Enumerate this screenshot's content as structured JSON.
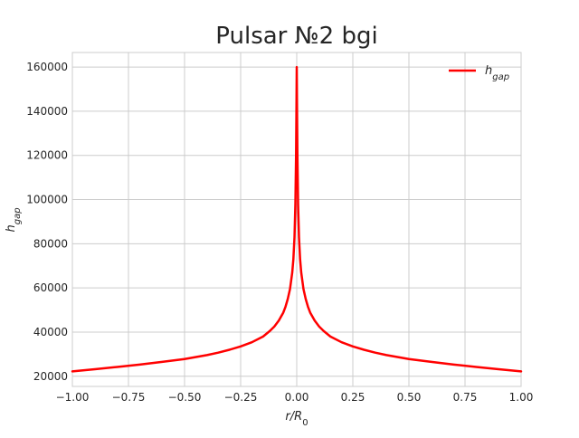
{
  "chart_data": {
    "type": "line",
    "title": "Pulsar №2 bgi",
    "xlabel": "r/R0",
    "ylabel": "hgap",
    "xlabel_parts": {
      "base": "r/R",
      "sub": "0"
    },
    "ylabel_parts": {
      "base": "h",
      "sub": "gap"
    },
    "xlim": [
      -1.0,
      1.0
    ],
    "ylim": [
      15400,
      166600
    ],
    "x_ticks": [
      -1.0,
      -0.75,
      -0.5,
      -0.25,
      0.0,
      0.25,
      0.5,
      0.75,
      1.0
    ],
    "x_tick_labels": [
      "−1.00",
      "−0.75",
      "−0.50",
      "−0.25",
      "0.00",
      "0.25",
      "0.50",
      "0.75",
      "1.00"
    ],
    "y_ticks": [
      20000,
      40000,
      60000,
      80000,
      100000,
      120000,
      140000,
      160000
    ],
    "y_tick_labels": [
      "20000",
      "40000",
      "60000",
      "80000",
      "100000",
      "120000",
      "140000",
      "160000"
    ],
    "grid": true,
    "legend_position": "top-right",
    "series": [
      {
        "name": "hgap",
        "name_parts": {
          "base": "h",
          "sub": "gap"
        },
        "color": "#ff0000",
        "x": [
          -1.0,
          -0.9,
          -0.8,
          -0.7,
          -0.6,
          -0.5,
          -0.4,
          -0.35,
          -0.3,
          -0.25,
          -0.2,
          -0.15,
          -0.12,
          -0.1,
          -0.08,
          -0.06,
          -0.05,
          -0.04,
          -0.03,
          -0.02,
          -0.015,
          -0.01,
          -0.006,
          -0.003,
          -0.001,
          0.0,
          0.001,
          0.003,
          0.006,
          0.01,
          0.015,
          0.02,
          0.03,
          0.04,
          0.05,
          0.06,
          0.08,
          0.1,
          0.12,
          0.15,
          0.2,
          0.25,
          0.3,
          0.35,
          0.4,
          0.5,
          0.6,
          0.7,
          0.8,
          0.9,
          1.0
        ],
        "y": [
          22200,
          23200,
          24200,
          25300,
          26500,
          27800,
          29600,
          30700,
          32000,
          33500,
          35400,
          38000,
          40500,
          42500,
          45200,
          48800,
          51500,
          55000,
          59500,
          67000,
          73000,
          83000,
          98000,
          120000,
          145000,
          160000,
          145000,
          120000,
          98000,
          83000,
          73000,
          67000,
          59500,
          55000,
          51500,
          48800,
          45200,
          42500,
          40500,
          38000,
          35400,
          33500,
          32000,
          30700,
          29600,
          27800,
          26500,
          25300,
          24200,
          23200,
          22200
        ]
      }
    ]
  }
}
